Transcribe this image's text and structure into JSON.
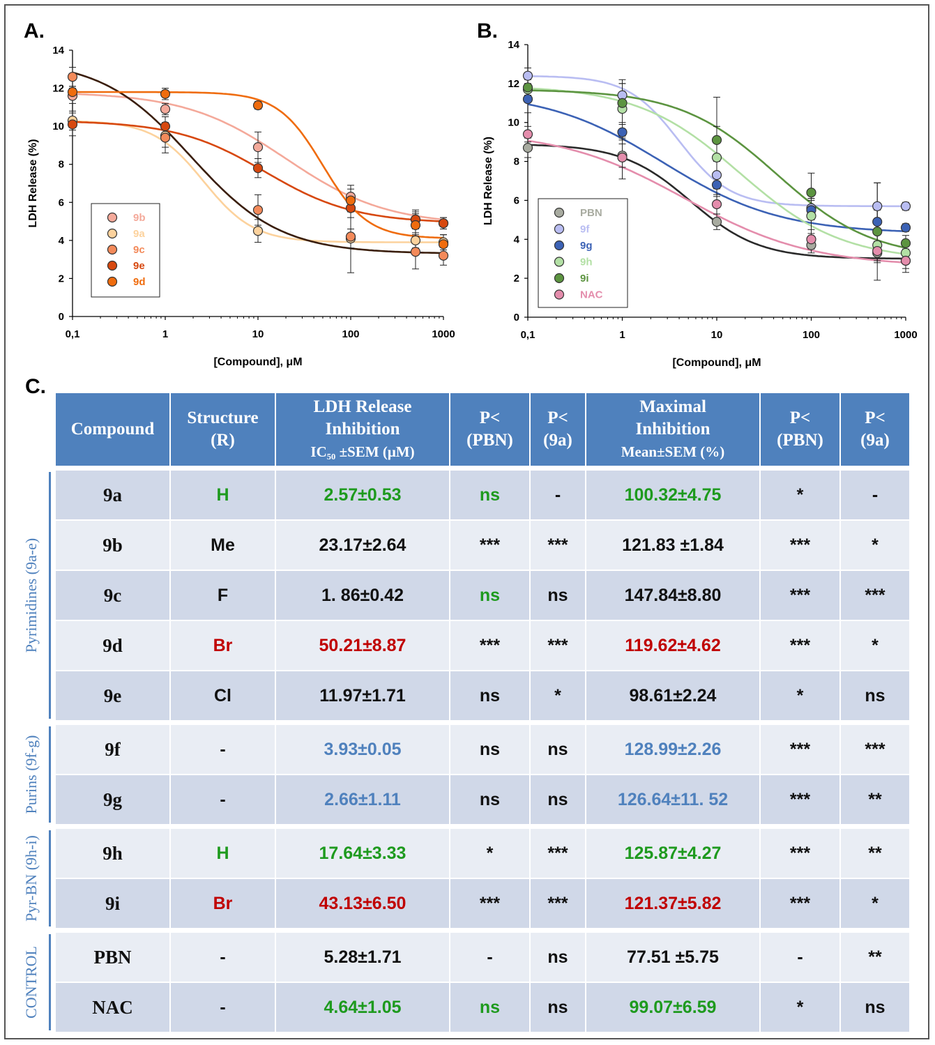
{
  "panel_labels": {
    "a": "A.",
    "b": "B.",
    "c": "C."
  },
  "colors": {
    "9b": "#f4a99a",
    "9a": "#fcd29d",
    "9c": "#f38a5a",
    "9e": "#d7480f",
    "9d": "#ef6c0e",
    "PBN": "#a8aba0",
    "9f": "#b9bdf2",
    "9g": "#3c62b5",
    "9h": "#b3e0a5",
    "9i": "#5c9440",
    "NAC": "#e48dac",
    "header_bg": "#4f81bd",
    "row_dark": "#d0d8e8",
    "row_light": "#e9edf4"
  },
  "chart_data": [
    {
      "type": "scatter",
      "title": "",
      "xlabel": "[Compound], μM",
      "ylabel": "LDH Release (%)",
      "xscale": "log",
      "xlim": [
        0.1,
        1000
      ],
      "ylim": [
        0,
        14
      ],
      "x_ticks": [
        0.1,
        1,
        10,
        100,
        1000
      ],
      "x_tick_labels": [
        "0,1",
        "1",
        "10",
        "100",
        "1000"
      ],
      "y_ticks": [
        0,
        2,
        4,
        6,
        8,
        10,
        12,
        14
      ],
      "y_tick_labels": [
        "0",
        "2",
        "4",
        "6",
        "8",
        "10",
        "12",
        "14"
      ],
      "legend_position": "bottom-left",
      "x": [
        0.1,
        1,
        10,
        100,
        500,
        1000
      ],
      "series": [
        {
          "name": "9b",
          "values": [
            11.6,
            10.9,
            8.9,
            6.3,
            5.1,
            4.9
          ],
          "errors": [
            0.4,
            0.3,
            0.8,
            0.6,
            0.5,
            0.3
          ],
          "curve": {
            "top": 11.8,
            "bottom": 4.8,
            "ec50": 20,
            "hill": 0.8
          }
        },
        {
          "name": "9a",
          "values": [
            10.3,
            9.5,
            4.5,
            4.1,
            4.0,
            3.9
          ],
          "errors": [
            0.5,
            0.6,
            0.6,
            0.5,
            0.4,
            0.4
          ],
          "curve": {
            "top": 10.3,
            "bottom": 3.9,
            "ec50": 2.6,
            "hill": 1.6
          }
        },
        {
          "name": "9c",
          "values": [
            12.6,
            9.4,
            5.6,
            4.2,
            3.4,
            3.2
          ],
          "errors": [
            0.5,
            0.8,
            0.8,
            1.9,
            0.9,
            0.5
          ],
          "curve": {
            "top": 13.5,
            "bottom": 3.3,
            "ec50": 1.9,
            "hill": 0.9
          }
        },
        {
          "name": "9e",
          "values": [
            10.1,
            10.0,
            7.8,
            5.7,
            5.1,
            4.9
          ],
          "errors": [
            0.6,
            0.5,
            0.5,
            0.5,
            0.4,
            0.3
          ],
          "curve": {
            "top": 10.3,
            "bottom": 4.9,
            "ec50": 12,
            "hill": 0.9
          }
        },
        {
          "name": "9d",
          "values": [
            11.8,
            11.7,
            11.1,
            6.1,
            4.8,
            3.8
          ],
          "errors": [
            0.3,
            0.3,
            0.2,
            0.6,
            0.6,
            0.5
          ],
          "curve": {
            "top": 11.8,
            "bottom": 4.1,
            "ec50": 50,
            "hill": 1.8
          }
        }
      ]
    },
    {
      "type": "scatter",
      "title": "",
      "xlabel": "[Compound], μM",
      "ylabel": "LDH Release (%)",
      "xscale": "log",
      "xlim": [
        0.1,
        1000
      ],
      "ylim": [
        0,
        14
      ],
      "x_ticks": [
        0.1,
        1,
        10,
        100,
        1000
      ],
      "x_tick_labels": [
        "0,1",
        "1",
        "10",
        "100",
        "1000"
      ],
      "y_ticks": [
        0,
        2,
        4,
        6,
        8,
        10,
        12,
        14
      ],
      "y_tick_labels": [
        "0",
        "2",
        "4",
        "6",
        "8",
        "10",
        "12",
        "14"
      ],
      "legend_position": "bottom-left",
      "x": [
        0.1,
        1,
        10,
        100,
        500,
        1000
      ],
      "series": [
        {
          "name": "PBN",
          "values": [
            8.7,
            8.3,
            4.9,
            3.7,
            3.3,
            2.9
          ],
          "errors": [
            0.5,
            0.6,
            0.4,
            0.4,
            0.5,
            0.4
          ],
          "curve": {
            "top": 8.9,
            "bottom": 3.0,
            "ec50": 5.3,
            "hill": 1.2
          }
        },
        {
          "name": "9f",
          "values": [
            12.4,
            11.4,
            7.3,
            5.6,
            5.7,
            5.7
          ],
          "errors": [
            0.4,
            0.6,
            0.7,
            0.5,
            1.2,
            0.2
          ],
          "curve": {
            "top": 12.4,
            "bottom": 5.7,
            "ec50": 4.0,
            "hill": 1.6
          }
        },
        {
          "name": "9g",
          "values": [
            11.2,
            9.5,
            6.8,
            5.5,
            4.9,
            4.6
          ],
          "errors": [
            0.7,
            0.4,
            0.6,
            0.5,
            0.6,
            0.2
          ],
          "curve": {
            "top": 11.6,
            "bottom": 4.3,
            "ec50": 2.7,
            "hill": 0.7
          }
        },
        {
          "name": "9h",
          "values": [
            11.7,
            10.7,
            8.2,
            5.2,
            3.7,
            3.3
          ],
          "errors": [
            0.3,
            1.5,
            1.6,
            0.9,
            0.8,
            0.4
          ],
          "curve": {
            "top": 11.9,
            "bottom": 2.9,
            "ec50": 17.6,
            "hill": 0.8
          }
        },
        {
          "name": "9i",
          "values": [
            11.8,
            11.0,
            9.1,
            6.4,
            4.4,
            3.8
          ],
          "errors": [
            0.4,
            1.0,
            2.2,
            1.0,
            2.5,
            0.4
          ],
          "curve": {
            "top": 11.7,
            "bottom": 3.0,
            "ec50": 43,
            "hill": 0.85
          }
        },
        {
          "name": "NAC",
          "values": [
            9.4,
            8.2,
            5.8,
            4.0,
            3.4,
            2.9
          ],
          "errors": [
            0.4,
            1.1,
            0.5,
            0.5,
            0.5,
            0.6
          ],
          "curve": {
            "top": 9.6,
            "bottom": 2.6,
            "ec50": 4.6,
            "hill": 0.65
          }
        }
      ]
    },
    {
      "type": "table",
      "headers": [
        {
          "lines": [
            "Compound"
          ]
        },
        {
          "lines": [
            "Structure",
            "(R)"
          ]
        },
        {
          "lines": [
            "LDH Release",
            "Inhibition"
          ],
          "sub": "IC₅₀ ±SEM (μM)"
        },
        {
          "lines": [
            "P<",
            "(PBN)"
          ]
        },
        {
          "lines": [
            "P<",
            "(9a)"
          ]
        },
        {
          "lines": [
            "Maximal",
            "Inhibition"
          ],
          "sub": "Mean±SEM (%)"
        },
        {
          "lines": [
            "P<",
            "(PBN)"
          ]
        },
        {
          "lines": [
            "P<",
            "(9a)"
          ]
        }
      ],
      "groups": [
        {
          "label": "Pyrimidines (9a-e)",
          "rows": 5
        },
        {
          "label": "Purins (9f-g)",
          "rows": 2
        },
        {
          "label": "Pyr-BN (9h-i)",
          "rows": 2
        },
        {
          "label": "CONTROL",
          "rows": 2
        }
      ],
      "rows": [
        {
          "compound": "9a",
          "structure": "H",
          "ic50": "2.57±0.53",
          "p_pbn": "ns",
          "p_9a": "-",
          "max_inh": "100.32±4.75",
          "p2_pbn": "*",
          "p2_9a": "-",
          "color": "green",
          "struct_color": "green",
          "struct_serif": false,
          "p_pbn_color": "green"
        },
        {
          "compound": "9b",
          "structure": "Me",
          "ic50": "23.17±2.64",
          "p_pbn": "***",
          "p_9a": "***",
          "max_inh": "121.83 ±1.84",
          "p2_pbn": "***",
          "p2_9a": "*",
          "color": "",
          "struct_color": "",
          "struct_serif": false,
          "p_pbn_color": ""
        },
        {
          "compound": "9c",
          "structure": "F",
          "ic50": "1. 86±0.42",
          "p_pbn": "ns",
          "p_9a": "ns",
          "max_inh": "147.84±8.80",
          "p2_pbn": "***",
          "p2_9a": "***",
          "color": "",
          "struct_color": "",
          "struct_serif": true,
          "p_pbn_color": "green"
        },
        {
          "compound": "9d",
          "structure": "Br",
          "ic50": "50.21±8.87",
          "p_pbn": "***",
          "p_9a": "***",
          "max_inh": "119.62±4.62",
          "p2_pbn": "***",
          "p2_9a": "*",
          "color": "red",
          "struct_color": "red",
          "struct_serif": true,
          "p_pbn_color": ""
        },
        {
          "compound": "9e",
          "structure": "Cl",
          "ic50": "11.97±1.71",
          "p_pbn": "ns",
          "p_9a": "*",
          "max_inh": "98.61±2.24",
          "p2_pbn": "*",
          "p2_9a": "ns",
          "color": "",
          "struct_color": "",
          "struct_serif": true,
          "p_pbn_color": ""
        },
        {
          "compound": "9f",
          "structure": "-",
          "ic50": "3.93±0.05",
          "p_pbn": "ns",
          "p_9a": "ns",
          "max_inh": "128.99±2.26",
          "p2_pbn": "***",
          "p2_9a": "***",
          "color": "blue",
          "struct_color": "",
          "struct_serif": false,
          "p_pbn_color": ""
        },
        {
          "compound": "9g",
          "structure": "-",
          "ic50": "2.66±1.11",
          "p_pbn": "ns",
          "p_9a": "ns",
          "max_inh": "126.64±11. 52",
          "p2_pbn": "***",
          "p2_9a": "**",
          "color": "blue",
          "struct_color": "",
          "struct_serif": false,
          "p_pbn_color": ""
        },
        {
          "compound": "9h",
          "structure": "H",
          "ic50": "17.64±3.33",
          "p_pbn": "*",
          "p_9a": "***",
          "max_inh": "125.87±4.27",
          "p2_pbn": "***",
          "p2_9a": "**",
          "color": "green",
          "struct_color": "green",
          "struct_serif": false,
          "p_pbn_color": ""
        },
        {
          "compound": "9i",
          "structure": "Br",
          "ic50": "43.13±6.50",
          "p_pbn": "***",
          "p_9a": "***",
          "max_inh": "121.37±5.82",
          "p2_pbn": "***",
          "p2_9a": "*",
          "color": "red",
          "struct_color": "red",
          "struct_serif": true,
          "p_pbn_color": ""
        },
        {
          "compound": "PBN",
          "structure": "-",
          "ic50": "5.28±1.71",
          "p_pbn": "-",
          "p_9a": "ns",
          "max_inh": "77.51 ±5.75",
          "p2_pbn": "-",
          "p2_9a": "**",
          "color": "",
          "struct_color": "",
          "struct_serif": false,
          "p_pbn_color": ""
        },
        {
          "compound": "NAC",
          "structure": "-",
          "ic50": "4.64±1.05",
          "p_pbn": "ns",
          "p_9a": "ns",
          "max_inh": "99.07±6.59",
          "p2_pbn": "*",
          "p2_9a": "ns",
          "color": "green",
          "struct_color": "",
          "struct_serif": false,
          "p_pbn_color": "green"
        }
      ]
    }
  ]
}
